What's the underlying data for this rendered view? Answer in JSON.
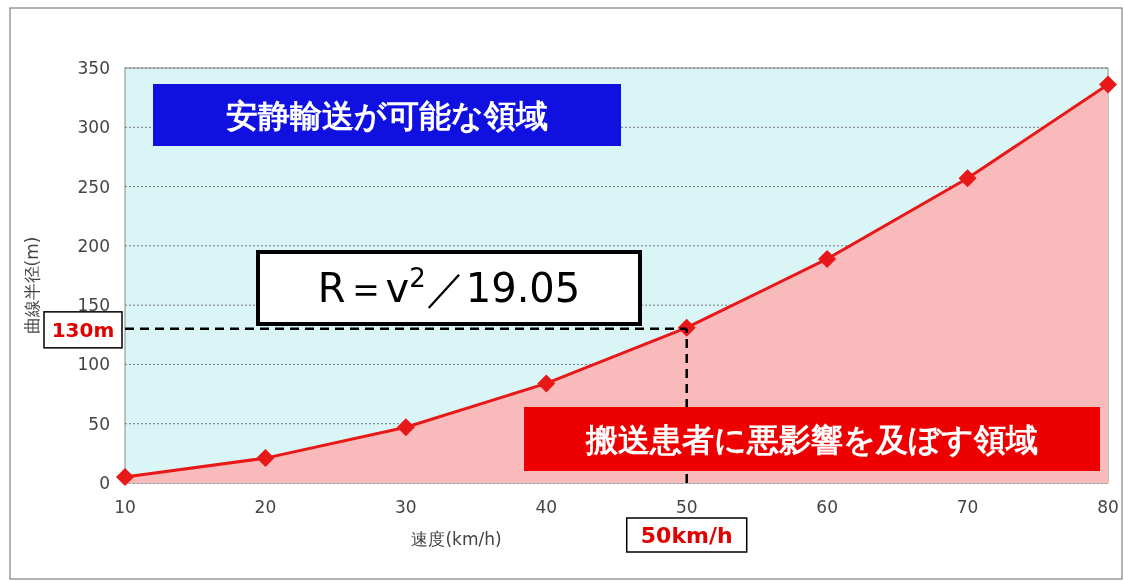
{
  "chart_data": {
    "type": "area",
    "xlabel": "速度(km/h)",
    "ylabel": "曲線半径(m)",
    "x": [
      10,
      20,
      30,
      40,
      50,
      60,
      70,
      80
    ],
    "series": [
      {
        "color": "#e81818",
        "values": [
          5,
          21,
          47,
          84,
          131,
          189,
          257,
          336
        ]
      }
    ],
    "marker": "diamond",
    "grid": "y",
    "xlim": [
      10,
      80
    ],
    "ylim": [
      0,
      350
    ],
    "xticks": [
      10,
      20,
      30,
      40,
      50,
      60,
      70,
      80
    ],
    "yticks": [
      0,
      50,
      100,
      150,
      200,
      250,
      300,
      350
    ],
    "ref_lines": [
      {
        "axis": "y",
        "value": 130,
        "label": "130m",
        "line_style": "dashed"
      },
      {
        "axis": "x",
        "value": 50,
        "label": "50km/h",
        "line_style": "dashed"
      }
    ],
    "annotations": [
      "安静輸送が可能な領域",
      "R＝v$^{2}$／19.05",
      "搬送患者に悪影響を及ぼす領域"
    ]
  }
}
